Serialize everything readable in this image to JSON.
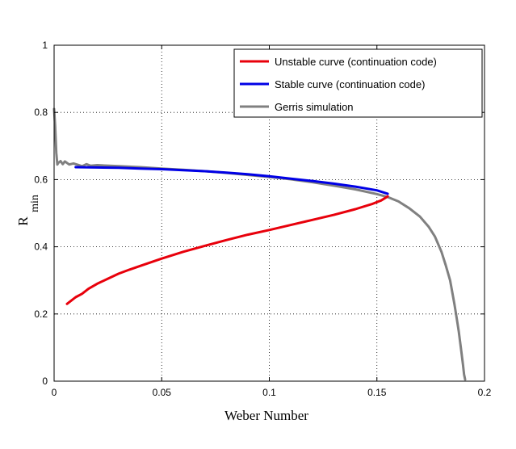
{
  "chart_data": {
    "type": "line",
    "xlabel": "Weber Number",
    "ylabel": "R",
    "ylabel_subscript": "min",
    "xlim": [
      0,
      0.2
    ],
    "ylim": [
      0,
      1
    ],
    "xticks": [
      0,
      0.05,
      0.1,
      0.15,
      0.2
    ],
    "xtick_labels": [
      "0",
      "0.05",
      "0.1",
      "0.15",
      "0.2"
    ],
    "yticks": [
      0,
      0.2,
      0.4,
      0.6,
      0.8,
      1
    ],
    "ytick_labels": [
      "0",
      "0.2",
      "0.4",
      "0.6",
      "0.8",
      "1"
    ],
    "grid": true,
    "legend_position": "top-right",
    "series": [
      {
        "name": "Unstable curve (continuation code)",
        "color": "#e8000b",
        "x": [
          0.006,
          0.008,
          0.01,
          0.013,
          0.016,
          0.02,
          0.025,
          0.03,
          0.035,
          0.04,
          0.05,
          0.06,
          0.07,
          0.08,
          0.09,
          0.1,
          0.11,
          0.12,
          0.13,
          0.14,
          0.148,
          0.152,
          0.155
        ],
        "y": [
          0.23,
          0.24,
          0.25,
          0.26,
          0.275,
          0.29,
          0.305,
          0.32,
          0.332,
          0.343,
          0.365,
          0.385,
          0.403,
          0.42,
          0.436,
          0.45,
          0.465,
          0.48,
          0.495,
          0.512,
          0.528,
          0.538,
          0.55
        ]
      },
      {
        "name": "Stable curve (continuation code)",
        "color": "#0000e6",
        "x": [
          0.01,
          0.02,
          0.03,
          0.04,
          0.05,
          0.06,
          0.07,
          0.08,
          0.09,
          0.1,
          0.11,
          0.12,
          0.13,
          0.14,
          0.15,
          0.155
        ],
        "y": [
          0.637,
          0.636,
          0.635,
          0.633,
          0.631,
          0.628,
          0.625,
          0.621,
          0.616,
          0.61,
          0.603,
          0.596,
          0.588,
          0.579,
          0.568,
          0.558
        ]
      },
      {
        "name": "Gerris simulation",
        "color": "#808080",
        "x": [
          0.0,
          0.0005,
          0.001,
          0.0015,
          0.002,
          0.003,
          0.004,
          0.005,
          0.007,
          0.009,
          0.011,
          0.013,
          0.015,
          0.017,
          0.02,
          0.03,
          0.04,
          0.05,
          0.06,
          0.07,
          0.08,
          0.09,
          0.1,
          0.11,
          0.12,
          0.13,
          0.14,
          0.15,
          0.155,
          0.16,
          0.165,
          0.17,
          0.174,
          0.177,
          0.18,
          0.182,
          0.184,
          0.186,
          0.187,
          0.188,
          0.189,
          0.19,
          0.1905,
          0.191
        ],
        "y": [
          0.81,
          0.76,
          0.68,
          0.645,
          0.65,
          0.655,
          0.646,
          0.654,
          0.645,
          0.648,
          0.644,
          0.64,
          0.646,
          0.641,
          0.643,
          0.64,
          0.637,
          0.633,
          0.629,
          0.625,
          0.62,
          0.614,
          0.608,
          0.601,
          0.592,
          0.582,
          0.571,
          0.557,
          0.548,
          0.535,
          0.515,
          0.49,
          0.46,
          0.43,
          0.385,
          0.345,
          0.3,
          0.23,
          0.19,
          0.15,
          0.1,
          0.05,
          0.02,
          0.005
        ]
      }
    ]
  }
}
